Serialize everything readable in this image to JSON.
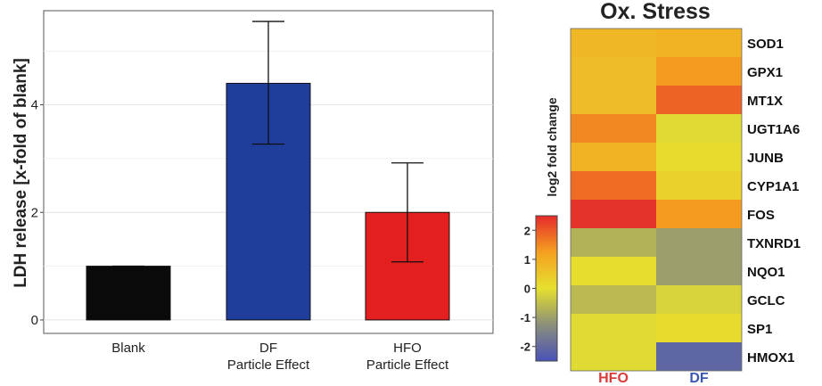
{
  "chart_data": [
    {
      "type": "bar",
      "ylabel": "LDH release [x-fold of blank]",
      "categories": [
        "Blank",
        "DF",
        "HFO"
      ],
      "category_sublabels": [
        "",
        "Particle Effect",
        "Particle Effect"
      ],
      "values": [
        1.0,
        4.4,
        2.0
      ],
      "error_low": [
        1.0,
        3.27,
        1.08
      ],
      "error_high": [
        1.0,
        5.55,
        2.92
      ],
      "colors": [
        "#0a0a0a",
        "#1f3d9a",
        "#e41f1f"
      ],
      "ylim": [
        -0.25,
        5.75
      ],
      "yticks": [
        "0",
        "2",
        "4"
      ],
      "grid": true
    },
    {
      "type": "heatmap",
      "title": "Ox. Stress",
      "columns": [
        "HFO",
        "DF"
      ],
      "column_colors": [
        "#d93a3a",
        "#3a57b3"
      ],
      "rows": [
        "SOD1",
        "GPX1",
        "MT1X",
        "UGT1A6",
        "JUNB",
        "CYP1A1",
        "FOS",
        "TXNRD1",
        "NQO1",
        "GCLC",
        "SP1",
        "HMOX1"
      ],
      "values": [
        [
          0.8,
          0.9
        ],
        [
          0.7,
          1.3
        ],
        [
          0.7,
          1.9
        ],
        [
          1.5,
          -0.1
        ],
        [
          0.9,
          0.1
        ],
        [
          1.8,
          0.3
        ],
        [
          2.4,
          1.3
        ],
        [
          -0.7,
          -1.0
        ],
        [
          0.05,
          -1.0
        ],
        [
          -0.6,
          -0.2
        ],
        [
          -0.1,
          0.1
        ],
        [
          -0.1,
          -2.1
        ]
      ],
      "colorbar": {
        "label": "log2 fold change",
        "range": [
          -2.5,
          2.5
        ],
        "ticks": [
          "2",
          "1",
          "0",
          "-1",
          "-2"
        ],
        "colors": [
          "#4a52b8",
          "#8a8f7a",
          "#e6e02e",
          "#f5a020",
          "#e52a2a"
        ]
      }
    }
  ]
}
